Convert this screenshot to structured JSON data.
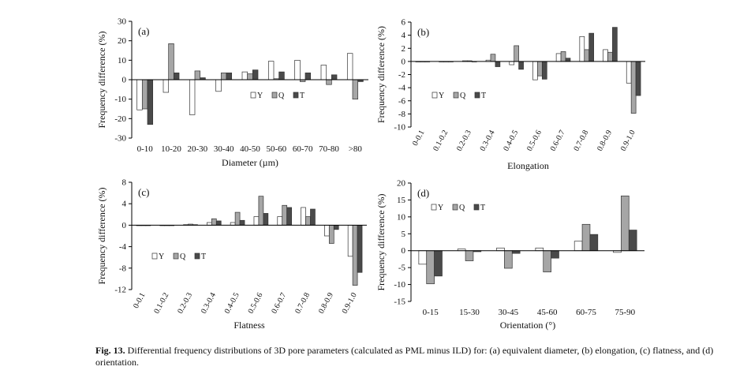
{
  "caption": {
    "label": "Fig. 13.",
    "text": "Differential frequency distributions of 3D pore parameters (calculated as PML minus ILD) for: (a) equivalent diameter, (b) elongation, (c) flatness, and (d) orientation."
  },
  "colors": {
    "Y": "#ffffff",
    "Q": "#a6a6a6",
    "T": "#4a4a4a",
    "axis": "#000000"
  },
  "chart_data": [
    {
      "id": "a",
      "type": "bar",
      "panel_label": "(a)",
      "xlabel": "Diameter (µm)",
      "ylabel": "Frequency difference (%)",
      "ylim": [
        -30,
        30
      ],
      "yticks": [
        -30,
        -20,
        -10,
        0,
        10,
        20,
        30
      ],
      "rotate_x_labels": false,
      "legend_position": "center-right",
      "categories": [
        "0-10",
        "10-20",
        "20-30",
        "30-40",
        "40-50",
        "50-60",
        "60-70",
        "70-80",
        ">80"
      ],
      "series": [
        {
          "name": "Y",
          "values": [
            -15.5,
            -6.5,
            -18,
            -6,
            4,
            9.5,
            10,
            7.5,
            13.5
          ]
        },
        {
          "name": "Q",
          "values": [
            -15,
            18.5,
            4.5,
            3.5,
            3,
            0.5,
            -1,
            -2.5,
            -10
          ]
        },
        {
          "name": "T",
          "values": [
            -23,
            3.5,
            1,
            3.5,
            5,
            4,
            3.5,
            2.5,
            -1
          ]
        }
      ]
    },
    {
      "id": "b",
      "type": "bar",
      "panel_label": "(b)",
      "xlabel": "Elongation",
      "ylabel": "Frequency difference (%)",
      "ylim": [
        -10,
        6
      ],
      "yticks": [
        -10,
        -8,
        -6,
        -4,
        -2,
        0,
        2,
        4,
        6
      ],
      "rotate_x_labels": true,
      "legend_position": "center-left",
      "categories": [
        "0-0.1",
        "0.1-0.2",
        "0.2-0.3",
        "0.3-0.4",
        "0.4-0.5",
        "0.5-0.6",
        "0.6-0.7",
        "0.7-0.8",
        "0.8-0.9",
        "0.9-1.0"
      ],
      "series": [
        {
          "name": "Y",
          "values": [
            0,
            0,
            0.1,
            0.2,
            -0.5,
            -2.8,
            1.2,
            3.8,
            1.8,
            -3.3
          ]
        },
        {
          "name": "Q",
          "values": [
            0,
            0,
            0.1,
            1.1,
            2.4,
            -2.2,
            1.5,
            1.8,
            1.4,
            -7.9
          ]
        },
        {
          "name": "T",
          "values": [
            0,
            0,
            0,
            -0.8,
            -1.2,
            -2.7,
            0.5,
            4.3,
            5.2,
            -5.2
          ]
        }
      ]
    },
    {
      "id": "c",
      "type": "bar",
      "panel_label": "(c)",
      "xlabel": "Flatness",
      "ylabel": "Frequency difference (%)",
      "ylim": [
        -12,
        8
      ],
      "yticks": [
        -12,
        -8,
        -4,
        0,
        4,
        8
      ],
      "rotate_x_labels": true,
      "legend_position": "bottom-left",
      "categories": [
        "0-0.1",
        "0.1-0.2",
        "0.2-0.3",
        "0.3-0.4",
        "0.4-0.5",
        "0.5-0.6",
        "0.6-0.7",
        "0.7-0.8",
        "0.8-0.9",
        "0.9-1.0"
      ],
      "series": [
        {
          "name": "Y",
          "values": [
            0,
            0,
            0.1,
            0.5,
            0.5,
            1.6,
            1.6,
            3.3,
            -2,
            -5.8
          ]
        },
        {
          "name": "Q",
          "values": [
            0,
            0,
            0.2,
            1.2,
            2.4,
            5.4,
            3.7,
            1.6,
            -3.4,
            -11.2
          ]
        },
        {
          "name": "T",
          "values": [
            0,
            0,
            0.1,
            0.8,
            0.9,
            2.2,
            3.3,
            3,
            -0.8,
            -8.8
          ]
        }
      ]
    },
    {
      "id": "d",
      "type": "bar",
      "panel_label": "(d)",
      "xlabel": "Orientation (°)",
      "ylabel": "Frequency difference (%)",
      "ylim": [
        -15,
        20
      ],
      "yticks": [
        -15,
        -10,
        -5,
        0,
        5,
        10,
        15,
        20
      ],
      "rotate_x_labels": false,
      "legend_position": "top-left",
      "categories": [
        "0-15",
        "15-30",
        "30-45",
        "45-60",
        "60-75",
        "75-90"
      ],
      "series": [
        {
          "name": "Y",
          "values": [
            -4,
            0.5,
            0.8,
            0.8,
            2.8,
            -0.5
          ]
        },
        {
          "name": "Q",
          "values": [
            -9.8,
            -3,
            -5.2,
            -6.3,
            7.8,
            16.2
          ]
        },
        {
          "name": "T",
          "values": [
            -7.5,
            -0.3,
            -0.8,
            -2.2,
            4.8,
            6.1
          ]
        }
      ]
    }
  ]
}
